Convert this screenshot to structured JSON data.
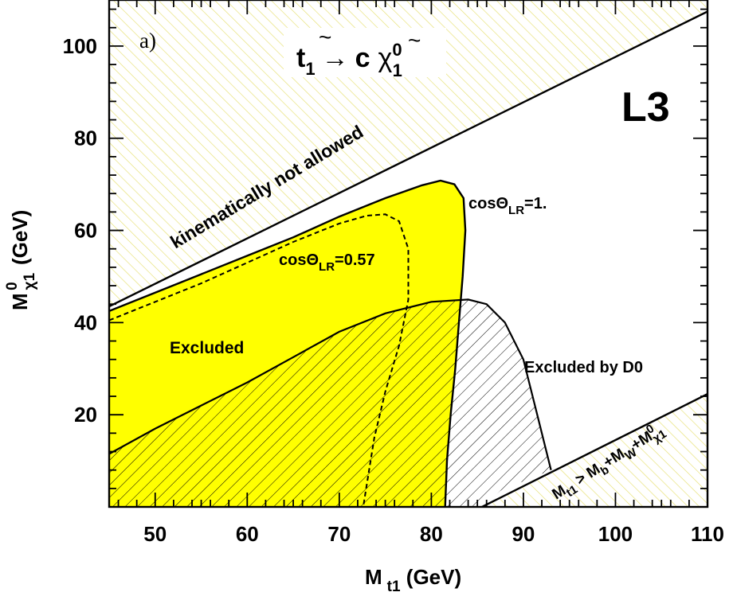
{
  "chart_data": {
    "type": "area",
    "panel_label": "a)",
    "title": "t̃1 → c χ̃⁰1",
    "title_parts": {
      "t": "t",
      "t_sub": "1",
      "arrow": "→",
      "c": "c",
      "chi": "χ",
      "chi_sup": "0",
      "chi_sub": "1"
    },
    "experiment_label": "L3",
    "xlabel": {
      "main": "M",
      "sub": "t1",
      "tail": " (GeV)"
    },
    "ylabel": {
      "main": "M",
      "sub": "χ1",
      "sup": "0",
      "tail": " (GeV)"
    },
    "xlim": [
      45,
      110
    ],
    "ylim": [
      0,
      110
    ],
    "xticks": [
      50,
      60,
      70,
      80,
      90,
      100,
      110
    ],
    "yticks": [
      20,
      40,
      60,
      80,
      100
    ],
    "regions": {
      "kinematic_forbidden": {
        "label": "kinematically not allowed",
        "boundary": [
          [
            45,
            43.5
          ],
          [
            110,
            107.5
          ]
        ]
      },
      "lower_forbidden": {
        "label": {
          "main": "M",
          "sub1": "t1",
          "mid": " > M",
          "sub2": "b",
          "mid2": "+M",
          "sub3": "W",
          "mid3": "+M",
          "sub4": "χ1",
          "sup4": "0"
        },
        "boundary": [
          [
            85.5,
            0
          ],
          [
            110,
            24.5
          ]
        ]
      },
      "l3_excluded_cos1": {
        "label": "Excluded",
        "curve_label": {
          "text": "cosΘ",
          "sub": "LR",
          "tail": "=1."
        },
        "boundary": [
          [
            45,
            42.5
          ],
          [
            50,
            46.5
          ],
          [
            55,
            50.5
          ],
          [
            60,
            54.5
          ],
          [
            65,
            58.5
          ],
          [
            70,
            63
          ],
          [
            75,
            67
          ],
          [
            79,
            69.8
          ],
          [
            81,
            70.8
          ],
          [
            82.5,
            70
          ],
          [
            83.5,
            67
          ],
          [
            83.7,
            60
          ],
          [
            83.4,
            50
          ],
          [
            83,
            40
          ],
          [
            82.6,
            30
          ],
          [
            82.1,
            20
          ],
          [
            81.7,
            10
          ],
          [
            81.5,
            0
          ],
          [
            45,
            0
          ]
        ]
      },
      "l3_cos057": {
        "curve_label": {
          "text": "cosΘ",
          "sub": "LR",
          "tail": "=0.57"
        },
        "boundary": [
          [
            45,
            40.5
          ],
          [
            50,
            44.5
          ],
          [
            55,
            48.5
          ],
          [
            60,
            53
          ],
          [
            65,
            57.5
          ],
          [
            70,
            61.5
          ],
          [
            73,
            63.2
          ],
          [
            75,
            63.5
          ],
          [
            76.5,
            62
          ],
          [
            77.5,
            56
          ],
          [
            77.5,
            45
          ],
          [
            76.5,
            35
          ],
          [
            75,
            25
          ],
          [
            73.8,
            15
          ],
          [
            73,
            5
          ],
          [
            72.6,
            0
          ]
        ]
      },
      "d0_excluded": {
        "label": "Excluded by D0",
        "boundary": [
          [
            45,
            11.5
          ],
          [
            50,
            17
          ],
          [
            55,
            22
          ],
          [
            60,
            27
          ],
          [
            65,
            32.5
          ],
          [
            70,
            38
          ],
          [
            75,
            42
          ],
          [
            80,
            44.5
          ],
          [
            84,
            45
          ],
          [
            86,
            44
          ],
          [
            88,
            40
          ],
          [
            90,
            32
          ],
          [
            91.5,
            20
          ],
          [
            93,
            8
          ],
          [
            87.5,
            3.5
          ],
          [
            85.5,
            0
          ],
          [
            45,
            0
          ]
        ]
      }
    },
    "colors": {
      "yellow_fill": "#ffff00",
      "hatch_yellow": "#e6e070",
      "line": "#000000",
      "background": "#ffffff"
    }
  }
}
